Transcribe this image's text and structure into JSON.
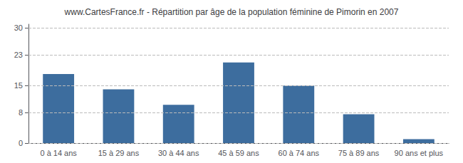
{
  "chart_data": {
    "type": "bar",
    "title": "www.CartesFrance.fr - Répartition par âge de la population féminine de Pimorin en 2007",
    "categories": [
      "0 à 14 ans",
      "15 à 29 ans",
      "30 à 44 ans",
      "45 à 59 ans",
      "60 à 74 ans",
      "75 à 89 ans",
      "90 ans et plus"
    ],
    "values": [
      18,
      14,
      10,
      21,
      15,
      7.5,
      1
    ],
    "color": "#3d6d9e",
    "ylim": [
      0,
      31
    ],
    "yticks": [
      0,
      8,
      15,
      23,
      30
    ],
    "grid": true
  }
}
